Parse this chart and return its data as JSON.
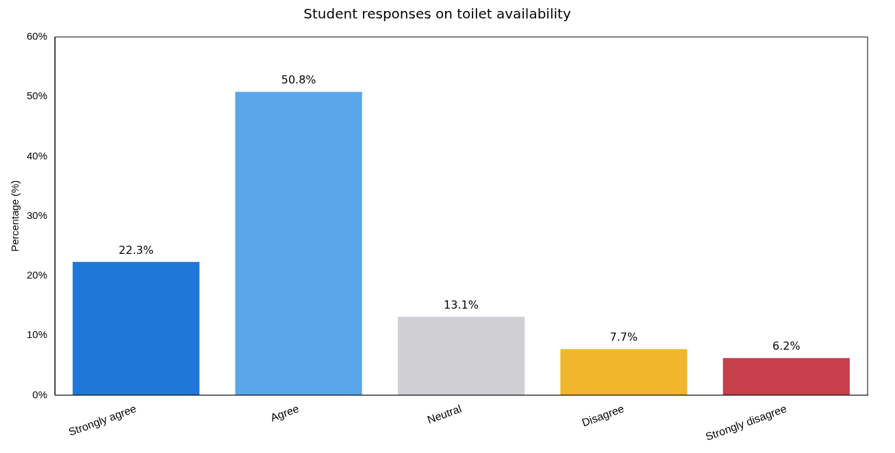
{
  "chart_data": {
    "type": "bar",
    "title": "Student responses on toilet availability",
    "ylabel": "Percentage (%)",
    "categories": [
      "Strongly agree",
      "Agree",
      "Neutral",
      "Disagree",
      "Strongly disagree"
    ],
    "values": [
      22.3,
      50.8,
      13.1,
      7.7,
      6.2
    ],
    "colors": [
      "#1f78d8",
      "#5aa6ea",
      "#cfcfd4",
      "#f2b62c",
      "#c83f4c"
    ],
    "value_labels": [
      "22.3%",
      "50.8%",
      "13.1%",
      "7.7%",
      "6.2%"
    ],
    "ylim": [
      0,
      60
    ],
    "yticks": [
      {
        "value": 0,
        "label": "0%"
      },
      {
        "value": 10,
        "label": "10%"
      },
      {
        "value": 20,
        "label": "20%"
      },
      {
        "value": 30,
        "label": "30%"
      },
      {
        "value": 40,
        "label": "40%"
      },
      {
        "value": 50,
        "label": "50%"
      },
      {
        "value": 60,
        "label": "60%"
      }
    ],
    "grid": false,
    "legend": false
  }
}
